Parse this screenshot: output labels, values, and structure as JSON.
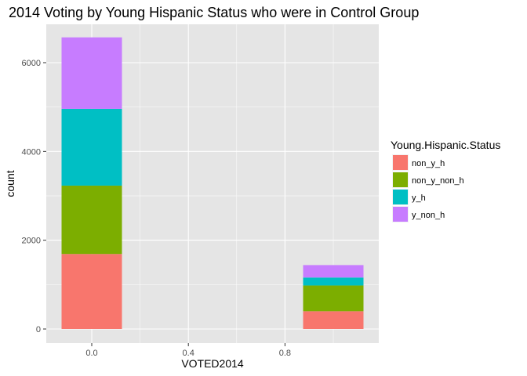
{
  "chart_data": {
    "type": "bar",
    "stacked": true,
    "title": "2014 Voting by Young Hispanic Status who were in Control Group",
    "xlabel": "VOTED2014",
    "ylabel": "count",
    "x": [
      0,
      1
    ],
    "xlim": [
      -0.15,
      1.15
    ],
    "ylim": [
      0,
      6900
    ],
    "x_ticks": [
      0.0,
      0.4,
      0.8
    ],
    "x_tick_labels": [
      "0.0",
      "0.4",
      "0.8"
    ],
    "y_ticks": [
      0,
      2000,
      4000,
      6000
    ],
    "y_tick_labels": [
      "0",
      "2000",
      "4000",
      "6000"
    ],
    "bar_width": 0.25,
    "grid": true,
    "legend": {
      "title": "Young.Hispanic.Status",
      "position": "right"
    },
    "series": [
      {
        "name": "non_y_h",
        "color": "#F8766D",
        "values": [
          1690,
          400
        ]
      },
      {
        "name": "non_y_non_h",
        "color": "#7CAE00",
        "values": [
          1540,
          580
        ]
      },
      {
        "name": "y_h",
        "color": "#00BFC4",
        "values": [
          1730,
          180
        ]
      },
      {
        "name": "y_non_h",
        "color": "#C77CFF",
        "values": [
          1610,
          280
        ]
      }
    ],
    "panel_background": "#E5E5E5",
    "grid_color": "#FFFFFF"
  }
}
